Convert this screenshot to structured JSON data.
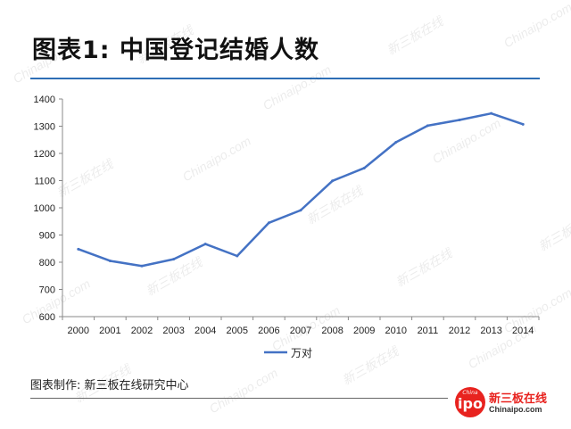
{
  "title": "图表1: 中国登记结婚人数",
  "source_note": "图表制作: 新三板在线研究中心",
  "logo": {
    "badge_top": "China",
    "badge_main": "ipo",
    "name": "新三板在线",
    "site": "Chinaipo.com"
  },
  "watermarks": [
    "Chinaipo.com",
    "新三板在线"
  ],
  "colors": {
    "line": "#4472c4",
    "title_rule": "#2e6eb5",
    "brand": "#e8231f"
  },
  "chart_data": {
    "type": "line",
    "title": "",
    "xlabel": "",
    "ylabel": "",
    "categories": [
      "2000",
      "2001",
      "2002",
      "2003",
      "2004",
      "2005",
      "2006",
      "2007",
      "2008",
      "2009",
      "2010",
      "2011",
      "2012",
      "2013",
      "2014"
    ],
    "series": [
      {
        "name": "万对",
        "values": [
          848,
          805,
          786,
          811,
          867,
          823,
          945,
          991,
          1099,
          1146,
          1241,
          1302,
          1323,
          1347,
          1307
        ]
      }
    ],
    "ylim": [
      600,
      1400
    ],
    "yticks": [
      600,
      700,
      800,
      900,
      1000,
      1100,
      1200,
      1300,
      1400
    ],
    "grid": false,
    "legend_position": "bottom"
  }
}
